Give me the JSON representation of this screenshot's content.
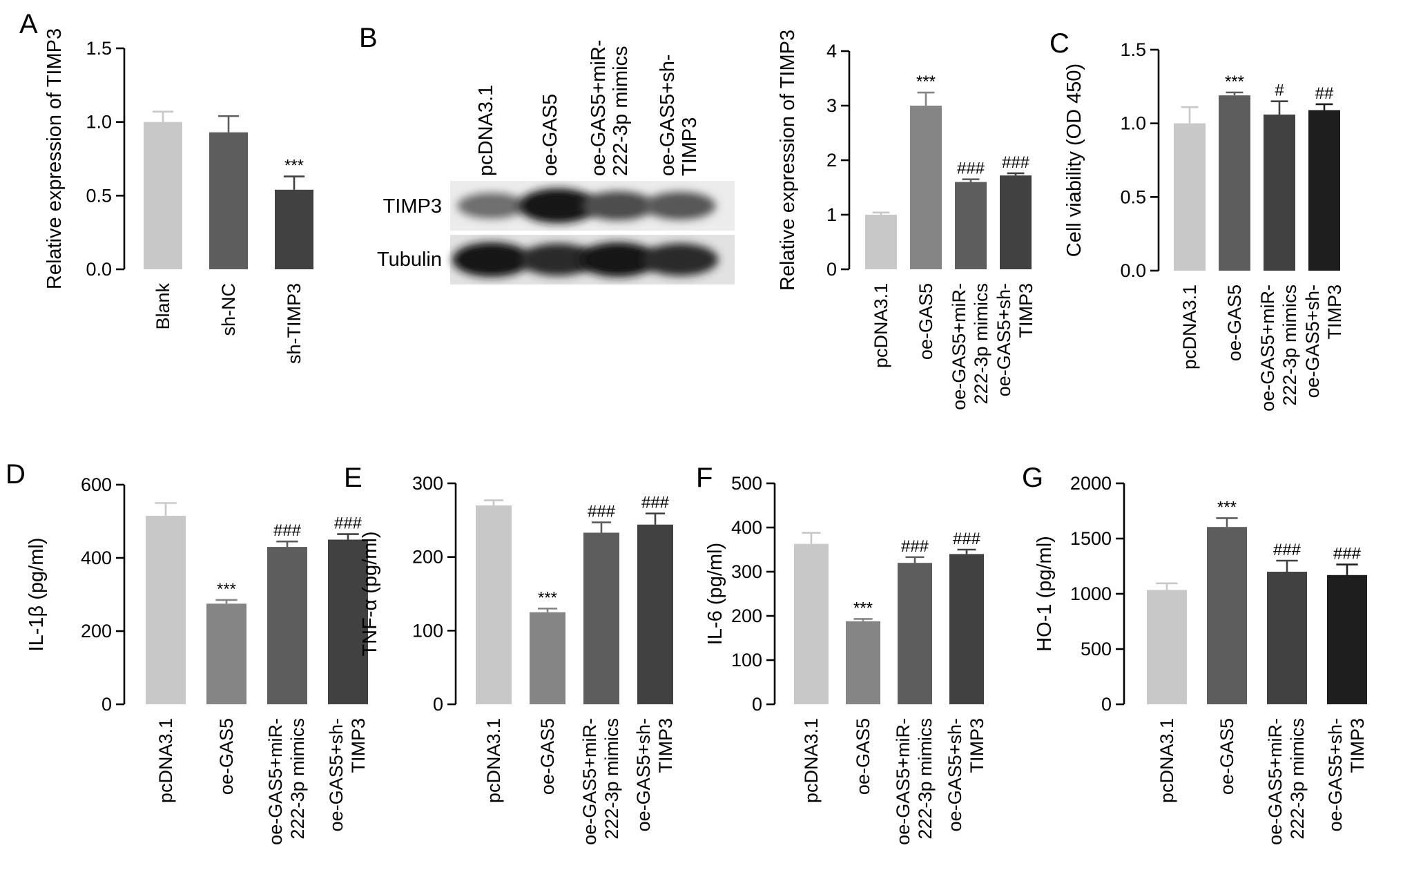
{
  "colors": {
    "light_gray": "#c8c8c8",
    "mid_gray": "#858585",
    "dark_gray_1": "#5d5d5d",
    "dark_gray_2": "#414141",
    "near_black": "#1e1e1e"
  },
  "chart_data": [
    {
      "id": "A",
      "panel_label": "A",
      "type": "bar",
      "ylabel": "Relative expression of TIMP3",
      "ylim": [
        0,
        1.5
      ],
      "yticks": [
        "0.0",
        "0.5",
        "1.0",
        "1.5"
      ],
      "categories": [
        "Blank",
        "sh-NC",
        "sh-TIMP3"
      ],
      "values": [
        1.0,
        0.93,
        0.54
      ],
      "errors": [
        0.07,
        0.11,
        0.09
      ],
      "significance": [
        "",
        "",
        "***"
      ],
      "colors": [
        "#c8c8c8",
        "#5d5d5d",
        "#414141"
      ]
    },
    {
      "id": "B",
      "panel_label": "B",
      "type": "bar",
      "ylabel": "Relative expression of TIMP3",
      "ylim": [
        0,
        4
      ],
      "yticks": [
        "0",
        "1",
        "2",
        "3",
        "4"
      ],
      "categories": [
        "pcDNA3.1",
        "oe-GAS5",
        "oe-GAS5+miR-222-3p mimics",
        "oe-GAS5+sh-TIMP3"
      ],
      "values": [
        1.0,
        3.0,
        1.6,
        1.72
      ],
      "errors": [
        0.04,
        0.24,
        0.05,
        0.04
      ],
      "significance": [
        "",
        "***",
        "###",
        "###"
      ],
      "colors": [
        "#c8c8c8",
        "#858585",
        "#5d5d5d",
        "#414141"
      ]
    },
    {
      "id": "C",
      "panel_label": "C",
      "type": "bar",
      "ylabel": "Cell viability (OD 450)",
      "ylim": [
        0,
        1.5
      ],
      "yticks": [
        "0.0",
        "0.5",
        "1.0",
        "1.5"
      ],
      "categories": [
        "pcDNA3.1",
        "oe-GAS5",
        "oe-GAS5+miR-222-3p mimics",
        "oe-GAS5+sh-TIMP3"
      ],
      "values": [
        1.0,
        1.19,
        1.06,
        1.09
      ],
      "errors": [
        0.11,
        0.02,
        0.09,
        0.04
      ],
      "significance": [
        "",
        "***",
        "#",
        "##"
      ],
      "colors": [
        "#c8c8c8",
        "#5d5d5d",
        "#414141",
        "#1e1e1e"
      ]
    },
    {
      "id": "D",
      "panel_label": "D",
      "type": "bar",
      "ylabel": "IL-1β (pg/ml)",
      "ylim": [
        0,
        600
      ],
      "yticks": [
        "0",
        "200",
        "400",
        "600"
      ],
      "categories": [
        "pcDNA3.1",
        "oe-GAS5",
        "oe-GAS5+miR-222-3p mimics",
        "oe-GAS5+sh-TIMP3"
      ],
      "values": [
        515,
        275,
        430,
        450
      ],
      "errors": [
        35,
        10,
        15,
        15
      ],
      "significance": [
        "",
        "***",
        "###",
        "###"
      ],
      "colors": [
        "#c8c8c8",
        "#858585",
        "#5d5d5d",
        "#414141"
      ]
    },
    {
      "id": "E",
      "panel_label": "E",
      "type": "bar",
      "ylabel": "TNF-α (pg/ml)",
      "ylim": [
        0,
        300
      ],
      "yticks": [
        "0",
        "100",
        "200",
        "300"
      ],
      "categories": [
        "pcDNA3.1",
        "oe-GAS5",
        "oe-GAS5+miR-222-3p mimics",
        "oe-GAS5+sh-TIMP3"
      ],
      "values": [
        270,
        125,
        233,
        244
      ],
      "errors": [
        7,
        5,
        14,
        15
      ],
      "significance": [
        "",
        "***",
        "###",
        "###"
      ],
      "colors": [
        "#c8c8c8",
        "#858585",
        "#5d5d5d",
        "#414141"
      ]
    },
    {
      "id": "F",
      "panel_label": "F",
      "type": "bar",
      "ylabel": "IL-6 (pg/ml)",
      "ylim": [
        0,
        500
      ],
      "yticks": [
        "0",
        "100",
        "200",
        "300",
        "400",
        "500"
      ],
      "categories": [
        "pcDNA3.1",
        "oe-GAS5",
        "oe-GAS5+miR-222-3p mimics",
        "oe-GAS5+sh-TIMP3"
      ],
      "values": [
        363,
        188,
        320,
        340
      ],
      "errors": [
        25,
        5,
        13,
        10
      ],
      "significance": [
        "",
        "***",
        "###",
        "###"
      ],
      "colors": [
        "#c8c8c8",
        "#858585",
        "#5d5d5d",
        "#414141"
      ]
    },
    {
      "id": "G",
      "panel_label": "G",
      "type": "bar",
      "ylabel": "HO-1 (pg/ml)",
      "ylim": [
        0,
        2000
      ],
      "yticks": [
        "0",
        "500",
        "1000",
        "1500",
        "2000"
      ],
      "categories": [
        "pcDNA3.1",
        "oe-GAS5",
        "oe-GAS5+miR-222-3p mimics",
        "oe-GAS5+sh-TIMP3"
      ],
      "values": [
        1035,
        1605,
        1200,
        1170
      ],
      "errors": [
        60,
        80,
        100,
        95
      ],
      "significance": [
        "",
        "***",
        "###",
        "###"
      ],
      "colors": [
        "#c8c8c8",
        "#5d5d5d",
        "#414141",
        "#1e1e1e"
      ]
    }
  ],
  "western_blot": {
    "lane_labels": [
      "pcDNA3.1",
      "oe-GAS5",
      "oe-GAS5+miR-222-3p mimics",
      "oe-GAS5+sh-TIMP3"
    ],
    "rows": [
      {
        "label": "TIMP3",
        "intensities": [
          0.55,
          0.95,
          0.7,
          0.65
        ]
      },
      {
        "label": "Tubulin",
        "intensities": [
          0.95,
          0.85,
          0.95,
          0.85
        ]
      }
    ]
  }
}
